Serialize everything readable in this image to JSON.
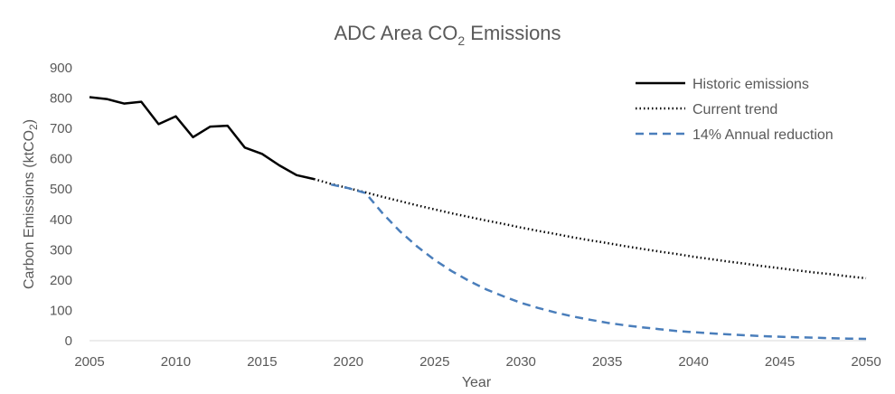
{
  "chart_data": {
    "type": "line",
    "title": {
      "main": "ADC Area CO",
      "sub": "2",
      "rest": " Emissions"
    },
    "xlabel": "Year",
    "ylabel": {
      "main": "Carbon Emissions (ktCO",
      "sub": "2",
      "rest": ")"
    },
    "xlim": [
      2005,
      2050
    ],
    "ylim": [
      0,
      900
    ],
    "xticks": [
      "2005",
      "2010",
      "2015",
      "2020",
      "2025",
      "2030",
      "2035",
      "2040",
      "2045",
      "2050"
    ],
    "yticks": [
      "0",
      "100",
      "200",
      "300",
      "400",
      "500",
      "600",
      "700",
      "800",
      "900"
    ],
    "legend_position": "top-right",
    "series": [
      {
        "name": "Historic emissions",
        "style": "solid",
        "color": "#000000",
        "x": [
          2005,
          2006,
          2007,
          2008,
          2009,
          2010,
          2011,
          2012,
          2013,
          2014,
          2015,
          2016,
          2017,
          2018
        ],
        "values": [
          803,
          797,
          782,
          788,
          714,
          740,
          671,
          706,
          709,
          637,
          616,
          578,
          546,
          533
        ]
      },
      {
        "name": "Current trend",
        "style": "dotted",
        "color": "#000000",
        "x": [
          2018,
          2019,
          2020,
          2021,
          2022,
          2023,
          2024,
          2025,
          2026,
          2027,
          2028,
          2029,
          2030,
          2031,
          2032,
          2033,
          2034,
          2035,
          2036,
          2037,
          2038,
          2039,
          2040,
          2041,
          2042,
          2043,
          2044,
          2045,
          2046,
          2047,
          2048,
          2049,
          2050
        ],
        "values": [
          533,
          517,
          503,
          489,
          474,
          460,
          446,
          433,
          420,
          408,
          396,
          385,
          373,
          362,
          352,
          341,
          331,
          322,
          312,
          303,
          294,
          286,
          277,
          269,
          261,
          254,
          246,
          239,
          232,
          225,
          219,
          212,
          206
        ]
      },
      {
        "name": "14% Annual reduction",
        "style": "dashed",
        "color": "#4a7ebb",
        "x": [
          2019,
          2020,
          2021,
          2022,
          2023,
          2024,
          2025,
          2026,
          2027,
          2028,
          2029,
          2030,
          2031,
          2032,
          2033,
          2034,
          2035,
          2036,
          2037,
          2038,
          2039,
          2040,
          2041,
          2042,
          2043,
          2044,
          2045,
          2046,
          2047,
          2048,
          2049,
          2050
        ],
        "values": [
          515,
          503,
          487,
          419,
          360,
          310,
          266,
          229,
          197,
          169,
          146,
          125,
          108,
          93,
          80,
          69,
          59,
          51,
          44,
          38,
          32,
          28,
          24,
          21,
          18,
          15,
          13,
          11,
          10,
          8,
          7,
          6
        ]
      }
    ]
  }
}
